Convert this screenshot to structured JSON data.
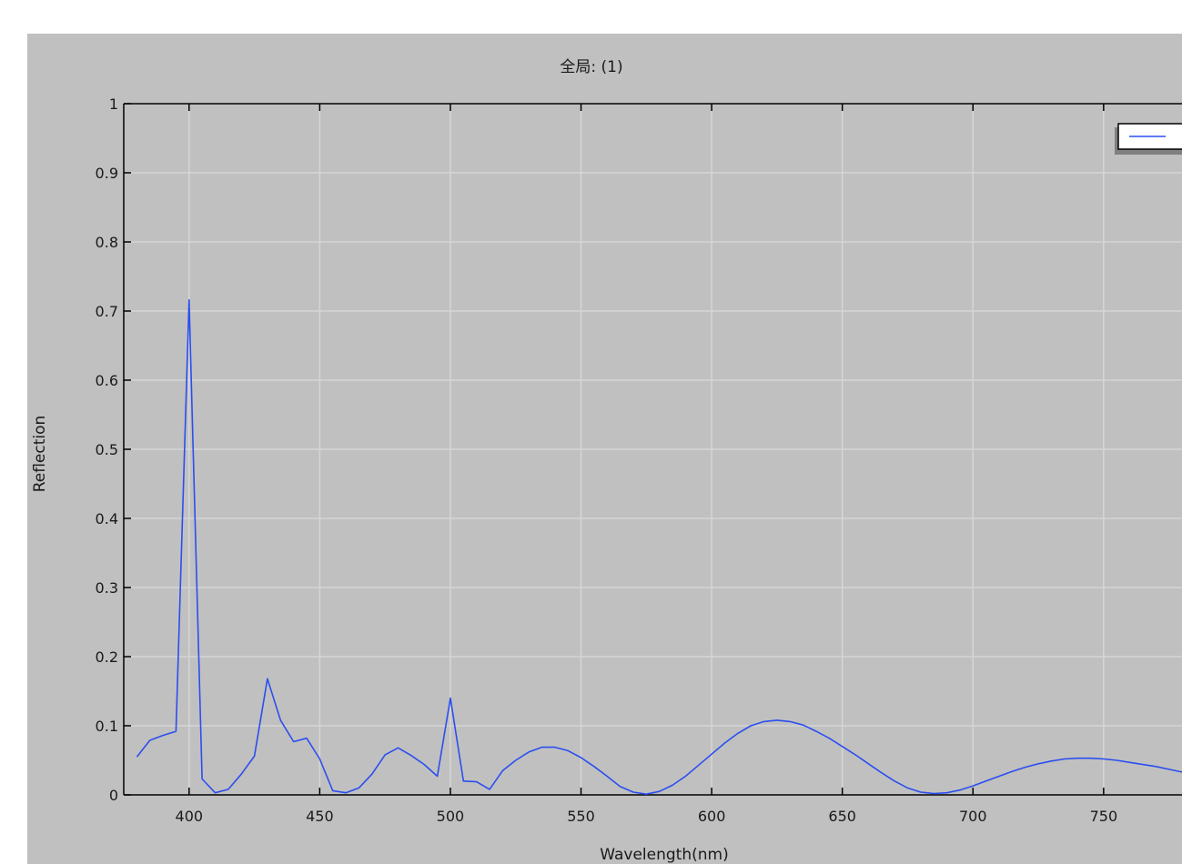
{
  "colors": {
    "panel_background": "#c0c0c0",
    "series": "#2b4ef0",
    "grid": "#d6d6d6"
  },
  "chart_data": {
    "type": "line",
    "title": "全局: (1)",
    "xlabel": "Wavelength(nm)",
    "ylabel": "Reflection",
    "xlim": [
      375,
      780
    ],
    "ylim": [
      0,
      1
    ],
    "x_ticks": [
      "400",
      "450",
      "500",
      "550",
      "600",
      "650",
      "700",
      "750"
    ],
    "y_ticks": [
      "0",
      "0.1",
      "0.2",
      "0.3",
      "0.4",
      "0.5",
      "0.6",
      "0.7",
      "0.8",
      "0.9",
      "1"
    ],
    "grid": true,
    "legend": "top-right",
    "series": [
      {
        "x": [
          380,
          385,
          390,
          395,
          400,
          405,
          410,
          415,
          420,
          425,
          430,
          435,
          440,
          445,
          450,
          455,
          460,
          465,
          470,
          475,
          480,
          485,
          490,
          495,
          500,
          505,
          510,
          515,
          520,
          525,
          530,
          535,
          540,
          545,
          550,
          555,
          560,
          565,
          570,
          575,
          580,
          585,
          590,
          595,
          600,
          605,
          610,
          615,
          620,
          625,
          630,
          635,
          640,
          645,
          650,
          655,
          660,
          665,
          670,
          675,
          680,
          685,
          690,
          695,
          700,
          705,
          710,
          715,
          720,
          725,
          730,
          735,
          740,
          745,
          750,
          755,
          760,
          765,
          770,
          775,
          780
        ],
        "y": [
          0.055,
          0.079,
          0.086,
          0.092,
          0.716,
          0.023,
          0.003,
          0.008,
          0.03,
          0.056,
          0.168,
          0.108,
          0.077,
          0.082,
          0.052,
          0.006,
          0.003,
          0.01,
          0.03,
          0.058,
          0.068,
          0.057,
          0.044,
          0.027,
          0.14,
          0.02,
          0.019,
          0.008,
          0.035,
          0.05,
          0.062,
          0.069,
          0.069,
          0.064,
          0.054,
          0.041,
          0.027,
          0.012,
          0.004,
          0.001,
          0.005,
          0.014,
          0.027,
          0.043,
          0.059,
          0.075,
          0.089,
          0.1,
          0.106,
          0.108,
          0.106,
          0.101,
          0.092,
          0.082,
          0.07,
          0.058,
          0.045,
          0.032,
          0.02,
          0.01,
          0.004,
          0.002,
          0.003,
          0.007,
          0.013,
          0.02,
          0.027,
          0.034,
          0.04,
          0.045,
          0.049,
          0.052,
          0.053,
          0.053,
          0.052,
          0.05,
          0.047,
          0.044,
          0.041,
          0.037,
          0.033
        ]
      }
    ]
  }
}
